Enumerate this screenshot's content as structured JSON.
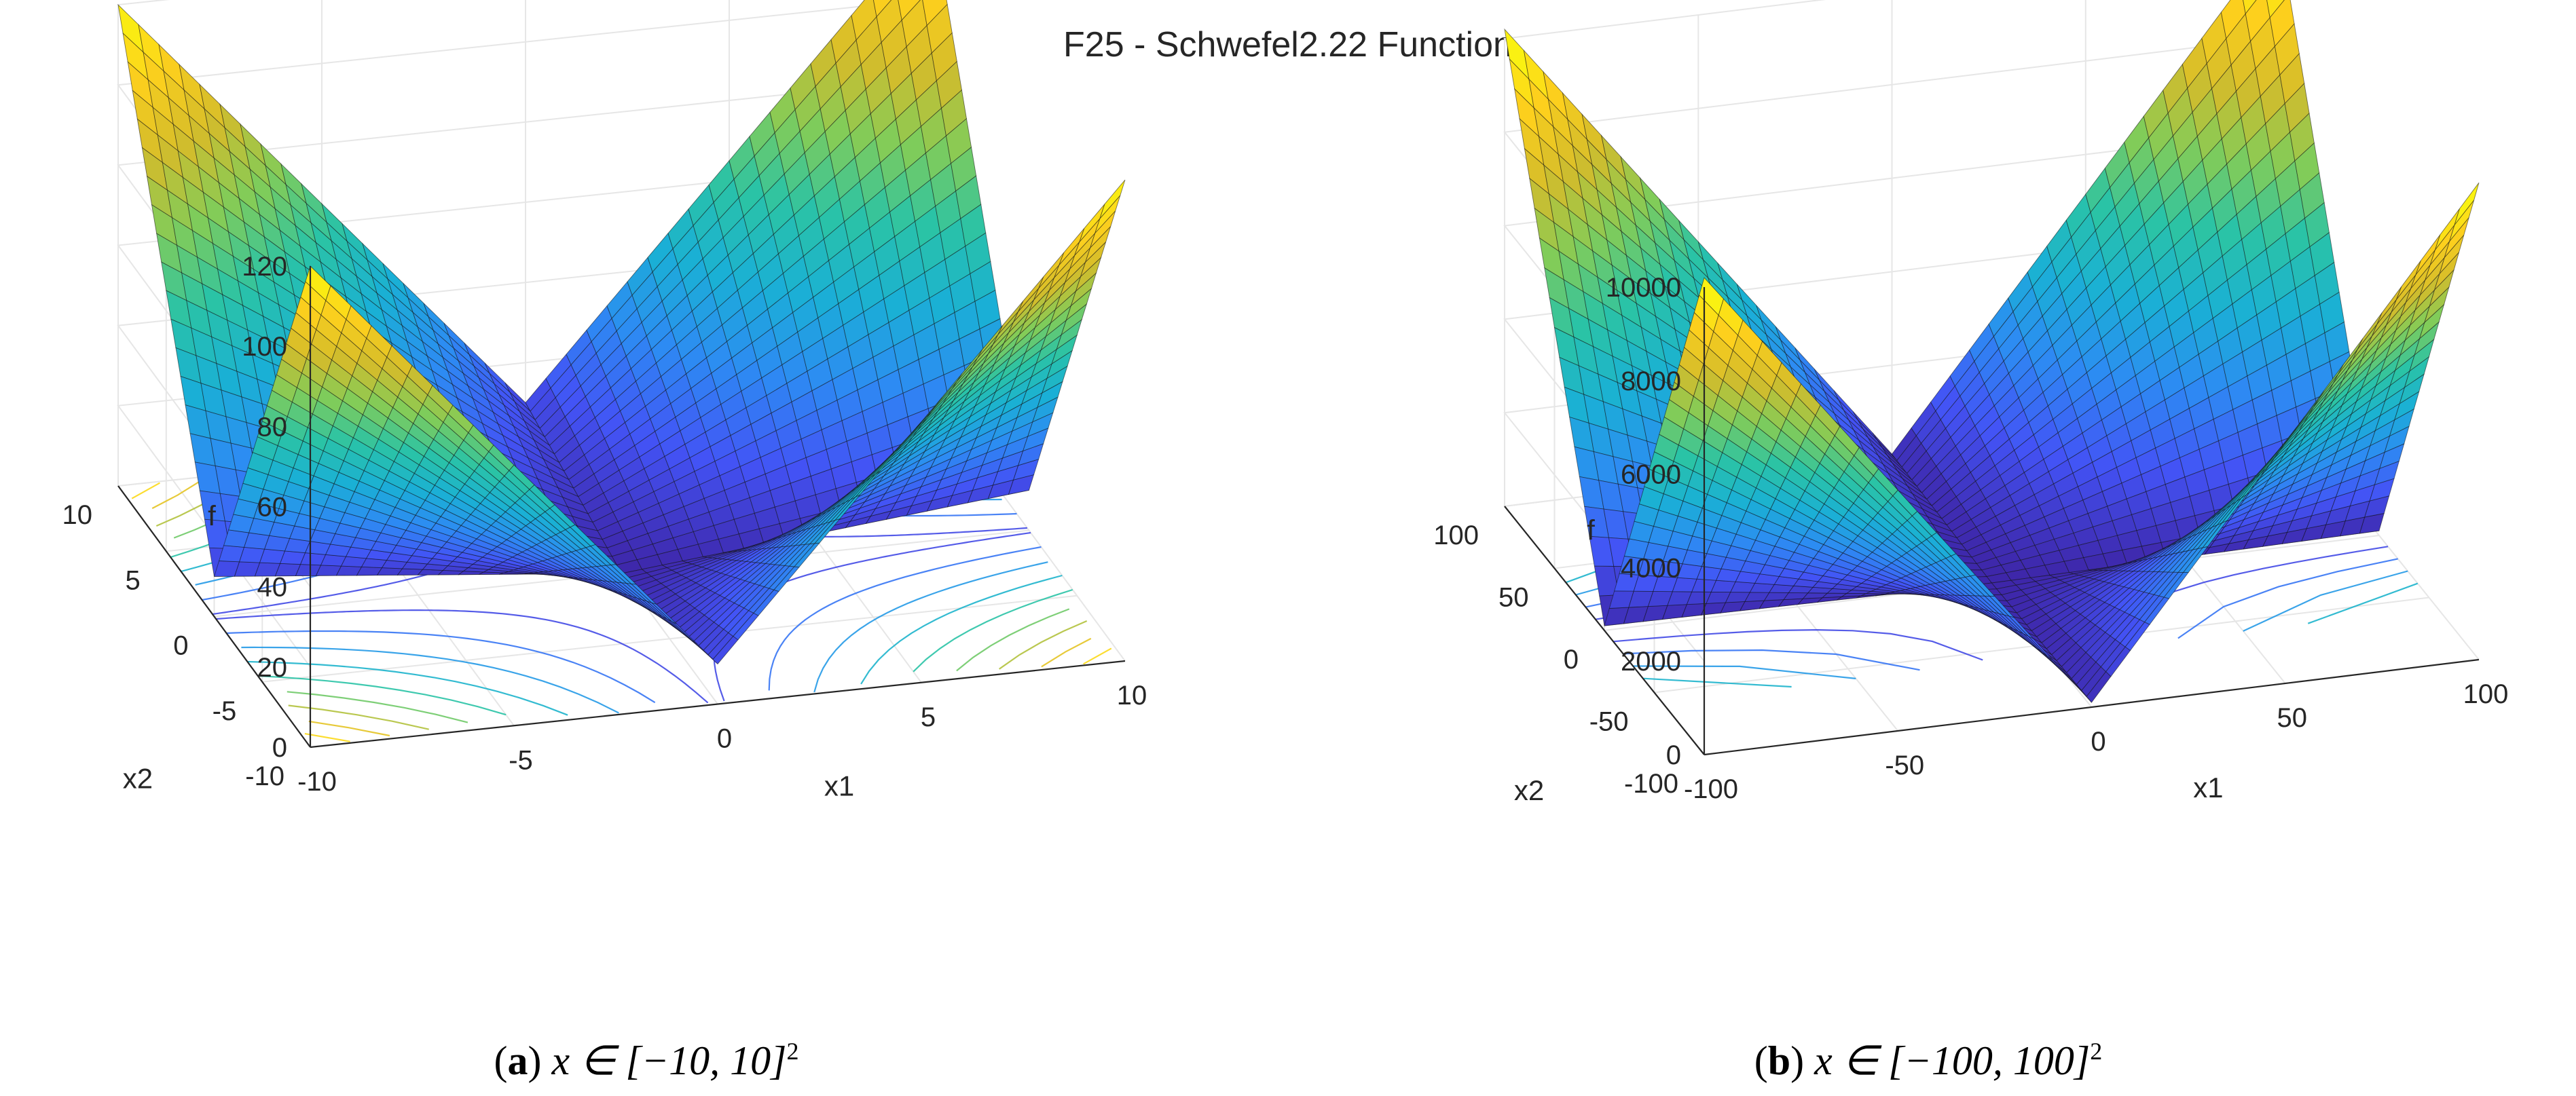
{
  "figure_title": "F25 - Schwefel2.22 Function",
  "colormap": [
    "#3e26a8",
    "#4353f5",
    "#2d8bf3",
    "#1ab0d5",
    "#2ac3a6",
    "#81cc59",
    "#d4bc2b",
    "#fdd01d",
    "#f9fb0e"
  ],
  "chart_data": [
    {
      "type": "surface3d",
      "function": "f(x) = sum|x_i| + prod|x_i|",
      "title": "",
      "caption": {
        "label": "a",
        "text": "x ∈ [−10, 10]",
        "sup": "2"
      },
      "xlabel": "x1",
      "ylabel": "x2",
      "zlabel": "f",
      "xlim": [
        -10,
        10
      ],
      "ylim": [
        -10,
        10
      ],
      "zlim": [
        0,
        120
      ],
      "xticks": [
        "-10",
        "-5",
        "0",
        "5",
        "10"
      ],
      "yticks": [
        "-10",
        "-5",
        "0",
        "5",
        "10"
      ],
      "zticks": [
        "0",
        "20",
        "40",
        "60",
        "80",
        "100",
        "120"
      ],
      "grid": true,
      "contours_on_base": true
    },
    {
      "type": "surface3d",
      "function": "f(x) = sum|x_i| + prod|x_i|",
      "title": "",
      "caption": {
        "label": "b",
        "text": "x ∈ [−100, 100]",
        "sup": "2"
      },
      "xlabel": "x1",
      "ylabel": "x2",
      "zlabel": "f",
      "xlim": [
        -100,
        100
      ],
      "ylim": [
        -100,
        100
      ],
      "zlim": [
        0,
        10000
      ],
      "xticks": [
        "-100",
        "-50",
        "0",
        "50",
        "100"
      ],
      "yticks": [
        "-100",
        "-50",
        "0",
        "50",
        "100"
      ],
      "zticks": [
        "0",
        "2000",
        "4000",
        "6000",
        "8000",
        "10000"
      ],
      "grid": true,
      "contours_on_base": true
    }
  ]
}
